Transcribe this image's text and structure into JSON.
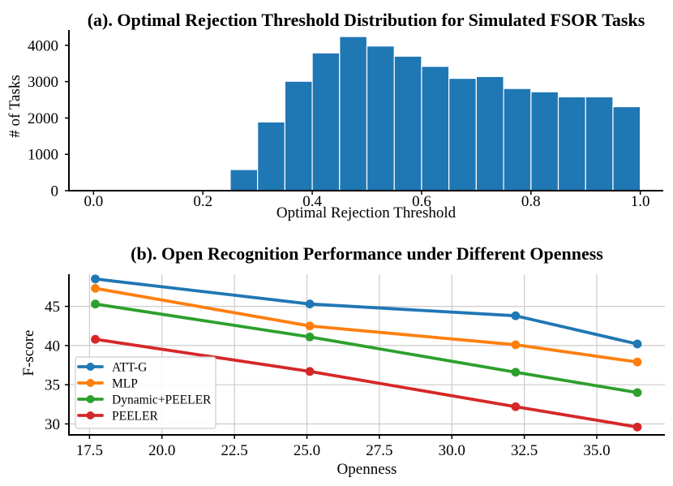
{
  "figure": {
    "background": "#ffffff",
    "text_color": "#000000",
    "spine_color": "#000000",
    "grid_color": "#cccccc"
  },
  "chart_data": [
    {
      "id": "subplot-a",
      "type": "bar",
      "title": "(a). Optimal Rejection Threshold Distribution for Simulated FSOR Tasks",
      "xlabel": "Optimal Rejection Threshold",
      "ylabel": "# of Tasks",
      "bar_color": "#1f77b4",
      "bar_edge_color": "#ffffff",
      "bin_start": 0.25,
      "bin_width": 0.05,
      "values": [
        580,
        1890,
        3010,
        3790,
        4240,
        3980,
        3700,
        3420,
        3090,
        3140,
        2810,
        2720,
        2580,
        2580,
        2310
      ],
      "xticks": [
        0.0,
        0.2,
        0.4,
        0.6,
        0.8,
        1.0
      ],
      "xtick_labels": [
        "0.0",
        "0.2",
        "0.4",
        "0.6",
        "0.8",
        "1.0"
      ],
      "yticks": [
        0,
        1000,
        2000,
        3000,
        4000
      ],
      "ytick_labels": [
        "0",
        "1000",
        "2000",
        "3000",
        "4000"
      ],
      "xlim": [
        -0.045,
        1.042
      ],
      "ylim": [
        0,
        4420
      ],
      "grid": false
    },
    {
      "id": "subplot-b",
      "type": "line",
      "title": "(b). Open Recognition Performance under Different Openness",
      "xlabel": "Openness",
      "ylabel": "F-score",
      "x": [
        17.7,
        25.1,
        32.2,
        36.4
      ],
      "series": [
        {
          "name": "ATT-G",
          "color": "#1f77b4",
          "values": [
            48.5,
            45.3,
            43.8,
            40.2
          ]
        },
        {
          "name": "MLP",
          "color": "#ff7f0e",
          "values": [
            47.3,
            42.5,
            40.1,
            37.9
          ]
        },
        {
          "name": "Dynamic+PEELER",
          "color": "#2ca02c",
          "values": [
            45.3,
            41.1,
            36.6,
            34.0
          ]
        },
        {
          "name": "PEELER",
          "color": "#d62728",
          "values": [
            40.8,
            36.7,
            32.2,
            29.6
          ]
        }
      ],
      "xticks": [
        17.5,
        20.0,
        22.5,
        25.0,
        27.5,
        30.0,
        32.5,
        35.0
      ],
      "xtick_labels": [
        "17.5",
        "20.0",
        "22.5",
        "25.0",
        "27.5",
        "30.0",
        "32.5",
        "35.0"
      ],
      "yticks": [
        30,
        35,
        40,
        45
      ],
      "ytick_labels": [
        "30",
        "35",
        "40",
        "45"
      ],
      "xlim": [
        16.79,
        37.35
      ],
      "ylim": [
        28.6,
        49.1
      ],
      "grid": true,
      "legend_position": "lower left"
    }
  ]
}
